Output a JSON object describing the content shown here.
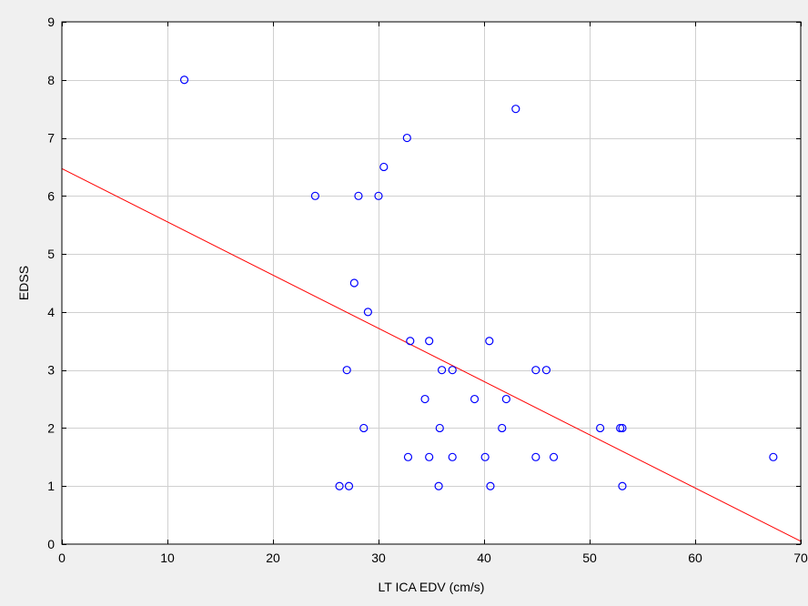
{
  "chart_data": {
    "type": "scatter",
    "title": "",
    "xlabel": "LT ICA EDV (cm/s)",
    "ylabel": "EDSS",
    "xlim": [
      0,
      70
    ],
    "ylim": [
      0,
      9
    ],
    "x_ticks": [
      0,
      10,
      20,
      30,
      40,
      50,
      60,
      70
    ],
    "y_ticks": [
      0,
      1,
      2,
      3,
      4,
      5,
      6,
      7,
      8,
      9
    ],
    "grid": true,
    "colors": {
      "points": "#0000ff",
      "fit_line": "#ff0000",
      "grid": "#d0d0d0",
      "plot_background": "#ffffff",
      "page_background": "#f0f0f0"
    },
    "series": [
      {
        "points": [
          {
            "x": 11.6,
            "y": 8.0
          },
          {
            "x": 43.0,
            "y": 7.5
          },
          {
            "x": 32.7,
            "y": 7.0
          },
          {
            "x": 30.5,
            "y": 6.5
          },
          {
            "x": 24.0,
            "y": 6.0
          },
          {
            "x": 28.1,
            "y": 6.0
          },
          {
            "x": 30.0,
            "y": 6.0
          },
          {
            "x": 27.7,
            "y": 4.5
          },
          {
            "x": 29.0,
            "y": 4.0
          },
          {
            "x": 33.0,
            "y": 3.5
          },
          {
            "x": 34.8,
            "y": 3.5
          },
          {
            "x": 40.5,
            "y": 3.5
          },
          {
            "x": 27.0,
            "y": 3.0
          },
          {
            "x": 36.0,
            "y": 3.0
          },
          {
            "x": 37.0,
            "y": 3.0
          },
          {
            "x": 44.9,
            "y": 3.0
          },
          {
            "x": 45.9,
            "y": 3.0
          },
          {
            "x": 34.4,
            "y": 2.5
          },
          {
            "x": 39.1,
            "y": 2.5
          },
          {
            "x": 42.1,
            "y": 2.5
          },
          {
            "x": 28.6,
            "y": 2.0
          },
          {
            "x": 35.8,
            "y": 2.0
          },
          {
            "x": 41.7,
            "y": 2.0
          },
          {
            "x": 51.0,
            "y": 2.0
          },
          {
            "x": 52.9,
            "y": 2.0
          },
          {
            "x": 53.1,
            "y": 2.0
          },
          {
            "x": 32.8,
            "y": 1.5
          },
          {
            "x": 34.8,
            "y": 1.5
          },
          {
            "x": 37.0,
            "y": 1.5
          },
          {
            "x": 40.1,
            "y": 1.5
          },
          {
            "x": 44.9,
            "y": 1.5
          },
          {
            "x": 46.6,
            "y": 1.5
          },
          {
            "x": 67.4,
            "y": 1.5
          },
          {
            "x": 26.3,
            "y": 1.0
          },
          {
            "x": 27.2,
            "y": 1.0
          },
          {
            "x": 35.7,
            "y": 1.0
          },
          {
            "x": 40.6,
            "y": 1.0
          },
          {
            "x": 53.1,
            "y": 1.0
          }
        ]
      }
    ],
    "fit_line": {
      "x": [
        0,
        70
      ],
      "y": [
        6.47,
        0.05
      ]
    }
  }
}
